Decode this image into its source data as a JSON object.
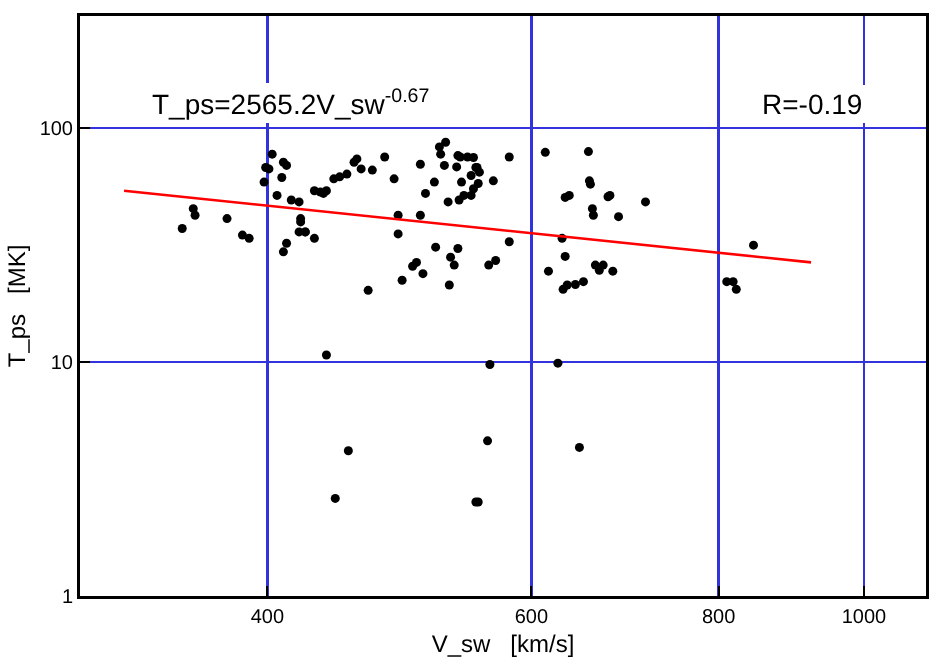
{
  "chart_data": {
    "type": "scatter",
    "xlabel": "V_sw   [km/s]",
    "ylabel": "T_ps   [MK]",
    "log": "xy",
    "grid": true,
    "xlim": [
      300,
      1100
    ],
    "xticks": [
      400,
      600,
      800,
      1000
    ],
    "ylim": [
      1,
      300
    ],
    "yticks": [
      1,
      10,
      100
    ],
    "annotations": [
      "T_ps=2565.2V_sw$^{-0.67}$",
      "R=-0.19"
    ],
    "series": [
      {
        "marker": "circle",
        "color": "#000000",
        "x": [
          351,
          357,
          358,
          376,
          385,
          389,
          398,
          399,
          401,
          403,
          406,
          409,
          410,
          412,
          410,
          412,
          415,
          420,
          421,
          421,
          424,
          424,
          420,
          430,
          430,
          434,
          436,
          438,
          438,
          443,
          447,
          452,
          444,
          453,
          457,
          459,
          462,
          467,
          470,
          479,
          486,
          489,
          489,
          492,
          500,
          503,
          506,
          506,
          508,
          510,
          517,
          518,
          521,
          522,
          525,
          526,
          528,
          530,
          533,
          529,
          536,
          535,
          537,
          538,
          536,
          539,
          541,
          544,
          547,
          549,
          551,
          549,
          547,
          552,
          553,
          554,
          553,
          561,
          563,
          566,
          562,
          568,
          580,
          580,
          551,
          613,
          616,
          625,
          629,
          632,
          632,
          636,
          630,
          634,
          642,
          646,
          650,
          655,
          656,
          657,
          659,
          660,
          662,
          666,
          670,
          675,
          677,
          680,
          686,
          715,
          810,
          818,
          822,
          844
        ],
        "values": [
          37.1,
          45.1,
          42.3,
          40.9,
          34.8,
          33.7,
          58.6,
          67.6,
          66.7,
          77.1,
          51.4,
          61.3,
          71.2,
          69.0,
          29.5,
          32.1,
          49.1,
          48.2,
          40.9,
          39.6,
          35.9,
          35.9,
          35.9,
          33.7,
          53.8,
          53.1,
          52.4,
          53.8,
          10.7,
          60.5,
          61.7,
          63.4,
          2.61,
          4.17,
          71.2,
          73.6,
          66.7,
          20.2,
          65.9,
          75.0,
          60.5,
          42.3,
          35.2,
          22.3,
          25.6,
          26.6,
          42.3,
          69.8,
          23.8,
          52.4,
          58.6,
          30.9,
          82.8,
          77.1,
          69.0,
          86.7,
          48.2,
          28.0,
          25.9,
          21.3,
          30.5,
          68.0,
          49.1,
          75.0,
          76.0,
          58.6,
          51.4,
          75.0,
          62.5,
          74.6,
          67.6,
          54.9,
          51.4,
          67.6,
          57.8,
          64.6,
          2.52,
          4.6,
          9.74,
          59.3,
          25.9,
          27.1,
          75.0,
          32.6,
          2.52,
          78.5,
          24.4,
          9.87,
          33.7,
          28.2,
          50.4,
          51.4,
          20.4,
          21.3,
          21.4,
          4.31,
          22.0,
          79.1,
          59.3,
          57.4,
          45.1,
          42.3,
          25.9,
          24.6,
          25.9,
          50.7,
          51.4,
          24.4,
          41.7,
          48.2,
          22.0,
          22.0,
          20.4,
          31.5
        ]
      },
      {
        "type": "line",
        "marker": "none",
        "color": "#ff0000",
        "x": [
          321,
          922
        ],
        "values": [
          53.8,
          26.6
        ]
      }
    ]
  }
}
